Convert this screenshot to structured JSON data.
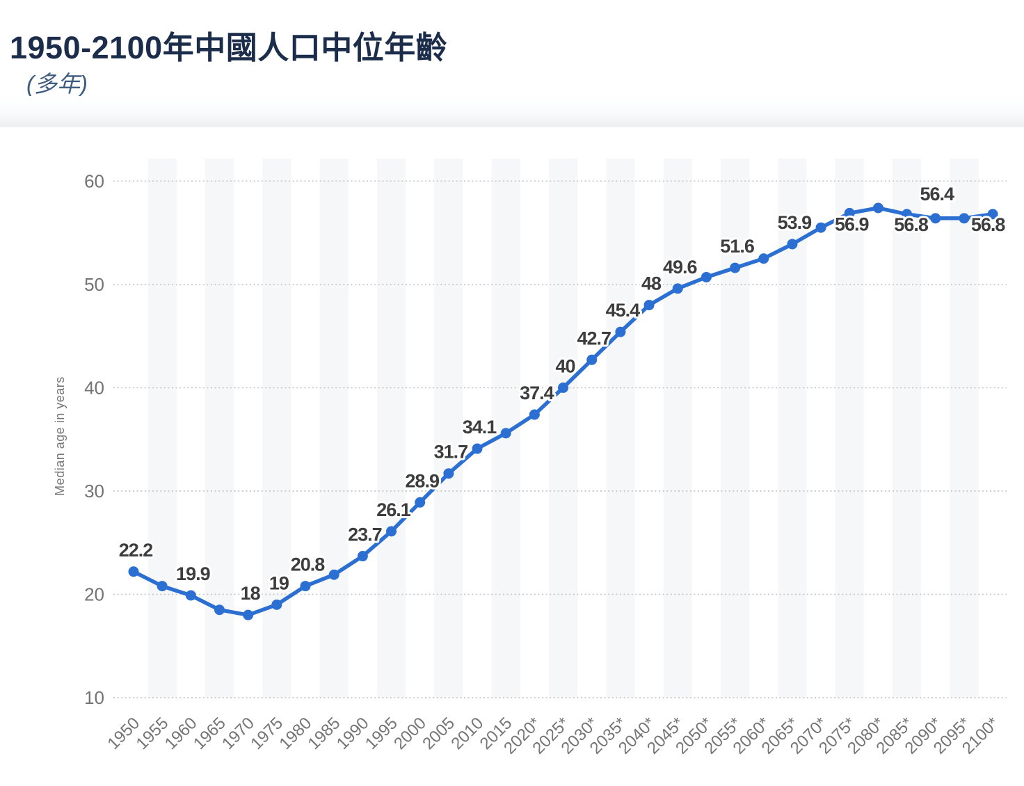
{
  "header": {
    "title": "1950-2100年中國人口中位年齡",
    "subtitle": "(多年)"
  },
  "chart_data": {
    "type": "line",
    "title": "1950-2100年中國人口中位年齡",
    "subtitle": "(多年)",
    "xlabel": "",
    "ylabel": "Median age in years",
    "ylim": [
      10,
      60
    ],
    "yticks": [
      10,
      20,
      30,
      40,
      50,
      60
    ],
    "grid": "horizontal dotted gridlines with alternating vertical category bands",
    "legend_position": "none",
    "projection_marker": "*",
    "categories": [
      "1950",
      "1955",
      "1960",
      "1965",
      "1970",
      "1975",
      "1980",
      "1985",
      "1990",
      "1995",
      "2000",
      "2005",
      "2010",
      "2015",
      "2020*",
      "2025*",
      "2030*",
      "2035*",
      "2040*",
      "2045*",
      "2050*",
      "2055*",
      "2060*",
      "2065*",
      "2070*",
      "2075*",
      "2080*",
      "2085*",
      "2090*",
      "2095*",
      "2100*"
    ],
    "series": [
      {
        "name": "Median age in years",
        "values": [
          22.2,
          20.8,
          19.9,
          18.5,
          18,
          19,
          20.8,
          21.9,
          23.7,
          26.1,
          28.9,
          31.7,
          34.1,
          35.6,
          37.4,
          40,
          42.7,
          45.4,
          48,
          49.6,
          50.7,
          51.6,
          52.5,
          53.9,
          55.5,
          56.9,
          57.4,
          56.8,
          56.4,
          56.4,
          56.8
        ]
      }
    ],
    "point_labels": [
      "22.2",
      "",
      "19.9",
      "",
      "18",
      "19",
      "20.8",
      "",
      "23.7",
      "26.1",
      "28.9",
      "31.7",
      "34.1",
      "",
      "37.4",
      "40",
      "42.7",
      "45.4",
      "48",
      "49.6",
      "",
      "51.6",
      "",
      "53.9",
      "",
      "56.9",
      "",
      "56.8",
      "56.4",
      "",
      "56.8"
    ],
    "colors": {
      "line": "#2c6fd2",
      "marker": "#2c6fd2",
      "band": "#f6f7f8",
      "gridline": "#c8c8c8",
      "y_tick_text": "#737373",
      "x_tick_text": "#757575",
      "axis_title_text": "#767676",
      "data_label_text": "#3d3d3d",
      "title_text": "#1b2d4a",
      "subtitle_text": "#3e5c80"
    }
  }
}
